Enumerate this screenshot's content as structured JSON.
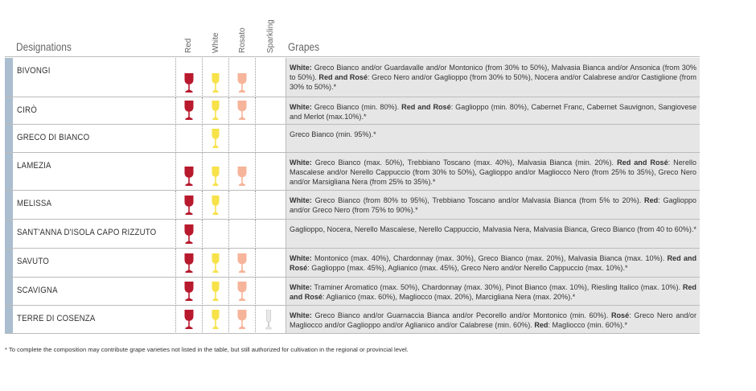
{
  "headers": {
    "designations": "Designations",
    "red": "Red",
    "white": "White",
    "rosato": "Rosato",
    "sparkling": "Sparkling",
    "grapes": "Grapes"
  },
  "colors": {
    "red": "#b8192d",
    "white": "#f7e24a",
    "rosato": "#f6b49a",
    "sparkling": "#e9e9e9",
    "row_bar": "#aabed0",
    "grapes_bg": "#e6e6e6"
  },
  "rows": [
    {
      "name": "BIVONGI",
      "red": true,
      "white": true,
      "rosato": true,
      "sparkling": false,
      "grapes": [
        {
          "b": "White:"
        },
        {
          "t": " Greco Bianco and/or Guardavalle and/or Montonico (from 30% to 50%), Malvasia Bianca and/or Ansonica (from 30% to 50%). "
        },
        {
          "b": "Red and Rosé"
        },
        {
          "t": ": Greco Nero and/or Gaglioppo (from 30% to 50%), Nocera and/or Calabrese and/or Castiglione (from 30% to 50%).*"
        }
      ]
    },
    {
      "name": "CIRÒ",
      "red": true,
      "white": true,
      "rosato": true,
      "sparkling": false,
      "grapes": [
        {
          "b": "White:"
        },
        {
          "t": " Greco Bianco (min. 80%). "
        },
        {
          "b": "Red and Rosé"
        },
        {
          "t": ": Gaglioppo (min. 80%), Cabernet Franc, Cabernet Sauvignon, Sangiovese and Merlot (max.10%).*"
        }
      ]
    },
    {
      "name": "GRECO DI BIANCO",
      "red": false,
      "white": true,
      "rosato": false,
      "sparkling": false,
      "grapes": [
        {
          "t": "Greco Bianco (min. 95%).*"
        }
      ]
    },
    {
      "name": "LAMEZIA",
      "red": true,
      "white": true,
      "rosato": true,
      "sparkling": false,
      "grapes": [
        {
          "b": "White:"
        },
        {
          "t": " Greco Bianco (max. 50%), Trebbiano Toscano (max. 40%), Malvasia Bianca (min. 20%). "
        },
        {
          "b": "Red and Rosé"
        },
        {
          "t": ": Nerello Mascalese and/or Nerello Cappuccio (from 30% to 50%), Gaglioppo and/or Magliocco Nero (from 25% to 35%), Greco Nero and/or Marsigliana Nera (from 25% to 35%).*"
        }
      ]
    },
    {
      "name": "MELISSA",
      "red": true,
      "white": true,
      "rosato": false,
      "sparkling": false,
      "grapes": [
        {
          "b": "White:"
        },
        {
          "t": " Greco Bianco (from 80% to 95%), Trebbiano Toscano and/or Malvasia Bianca (from 5% to 20%). "
        },
        {
          "b": "Red"
        },
        {
          "t": ": Gaglioppo and/or Greco Nero (from 75% to 90%).*"
        }
      ]
    },
    {
      "name": "SANT'ANNA D'ISOLA CAPO RIZZUTO",
      "red": true,
      "white": false,
      "rosato": false,
      "sparkling": false,
      "grapes": [
        {
          "t": "Gaglioppo, Nocera, Nerello Mascalese, Nerello Cappuccio, Malvasia Nera, Malvasia Bianca, Greco Bianco (from 40 to 60%).*"
        }
      ]
    },
    {
      "name": "SAVUTO",
      "red": true,
      "white": true,
      "rosato": true,
      "sparkling": false,
      "grapes": [
        {
          "b": "White:"
        },
        {
          "t": " Montonico (max. 40%), Chardonnay (max. 30%), Greco Bianco (max. 20%), Malvasia Bianca (max. 10%). "
        },
        {
          "b": "Red and Rosé"
        },
        {
          "t": ": Gaglioppo (max. 45%), Aglianico (max. 45%), Greco Nero and/or Nerello Cappuccio (max. 10%).*"
        }
      ]
    },
    {
      "name": "SCAVIGNA",
      "red": true,
      "white": true,
      "rosato": true,
      "sparkling": false,
      "grapes": [
        {
          "b": "White:"
        },
        {
          "t": " Traminer Aromatico (max. 50%), Chardonnay (max. 30%), Pinot Bianco (max. 10%), Riesling Italico (max. 10%). "
        },
        {
          "b": "Red and Rosé"
        },
        {
          "t": ": Aglianico (max. 60%), Magliocco (max. 20%), Marcigliana Nera (max. 20%).*"
        }
      ]
    },
    {
      "name": "TERRE DI COSENZA",
      "red": true,
      "white": true,
      "rosato": true,
      "sparkling": true,
      "grapes": [
        {
          "b": "White:"
        },
        {
          "t": " Greco Bianco and/or Guarnaccia Bianca and/or Pecorello and/or Montonico (min. 60%). "
        },
        {
          "b": "Rosé"
        },
        {
          "t": ": Greco Nero and/or Magliocco and/or Gaglioppo and/or Aglianico and/or Calabrese (min. 60%). "
        },
        {
          "b": "Red"
        },
        {
          "t": ": Magliocco (min. 60%).*"
        }
      ]
    }
  ],
  "footnote": "* To complete the composition may contribute grape varieties not listed in the table, but still authorized for cultivation in the regional or provincial level."
}
